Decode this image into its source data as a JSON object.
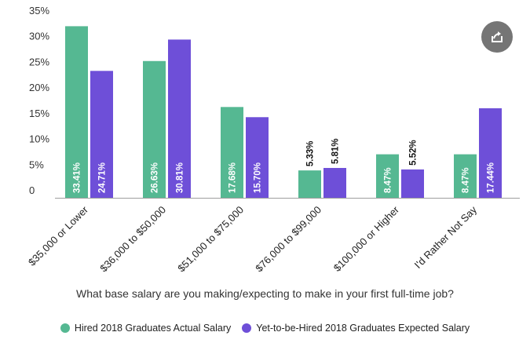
{
  "chart_data": {
    "type": "bar",
    "categories": [
      "$35,000 or Lower",
      "$36,000 to $50,000",
      "$51,000 to $75,000",
      "$76,000 to $99,000",
      "$100,000 or Higher",
      "I'd Rather Not Say"
    ],
    "series": [
      {
        "name": "Hired 2018 Graduates Actual Salary",
        "color": "#55b892",
        "values": [
          33.41,
          26.63,
          17.68,
          5.33,
          8.47,
          8.47
        ],
        "labels": [
          "33.41%",
          "26.63%",
          "17.68%",
          "5.33%",
          "8.47%",
          "8.47%"
        ]
      },
      {
        "name": "Yet-to-be-Hired 2018 Graduates Expected Salary",
        "color": "#6e4fd8",
        "values": [
          24.71,
          30.81,
          15.7,
          5.81,
          5.52,
          17.44
        ],
        "labels": [
          "24.71%",
          "30.81%",
          "15.70%",
          "5.81%",
          "5.52%",
          "17.44%"
        ]
      }
    ],
    "yticks": [
      "0",
      "5%",
      "10%",
      "15%",
      "20%",
      "25%",
      "30%",
      "35%"
    ],
    "ylim": [
      0,
      35
    ],
    "xlabel": "What base salary are you making/expecting to make in your first full-time job?",
    "ylabel": "",
    "legend_position": "bottom"
  },
  "ui": {
    "share_icon": "share-icon"
  }
}
